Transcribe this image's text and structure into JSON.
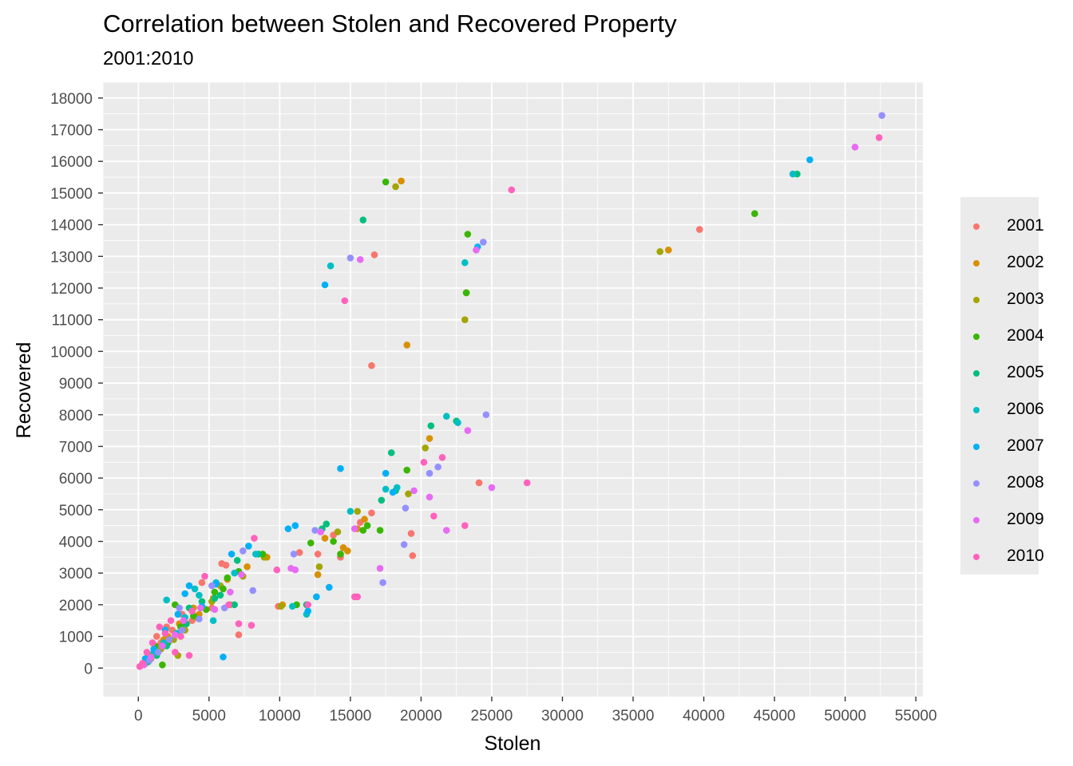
{
  "chart_data": {
    "type": "scatter",
    "title": "Correlation between Stolen and Recovered Property",
    "subtitle": "2001:2010",
    "xlabel": "Stolen",
    "ylabel": "Recovered",
    "xlim": [
      -2500,
      55500
    ],
    "ylim": [
      -900,
      18500
    ],
    "x_ticks": [
      "0",
      "5000",
      "10000",
      "15000",
      "20000",
      "25000",
      "30000",
      "35000",
      "40000",
      "45000",
      "50000",
      "55000"
    ],
    "y_ticks": [
      "0",
      "1000",
      "2000",
      "3000",
      "4000",
      "5000",
      "6000",
      "7000",
      "8000",
      "9000",
      "10000",
      "11000",
      "12000",
      "13000",
      "14000",
      "15000",
      "16000",
      "17000",
      "18000"
    ],
    "grid": true,
    "legend_position": "right",
    "colors": {
      "panel": "#ebebeb",
      "grid": "#ffffff",
      "axis_text": "#4d4d4d"
    },
    "series": [
      {
        "name": "2001",
        "color": "#F8766D",
        "points": [
          [
            39700,
            13850
          ],
          [
            16700,
            13050
          ],
          [
            16500,
            9550
          ],
          [
            24100,
            5850
          ],
          [
            19300,
            4250
          ],
          [
            19400,
            3550
          ],
          [
            15700,
            4600
          ],
          [
            16500,
            4900
          ],
          [
            13800,
            4200
          ],
          [
            14300,
            3500
          ],
          [
            12700,
            3600
          ],
          [
            14500,
            3800
          ],
          [
            7100,
            1050
          ],
          [
            5900,
            3300
          ],
          [
            4500,
            2700
          ],
          [
            5200,
            1900
          ],
          [
            3100,
            1700
          ],
          [
            2400,
            1200
          ],
          [
            1600,
            800
          ],
          [
            1000,
            400
          ],
          [
            600,
            200
          ],
          [
            300,
            100
          ],
          [
            1300,
            1000
          ],
          [
            2000,
            1300
          ],
          [
            3800,
            1500
          ],
          [
            6200,
            3250
          ],
          [
            9900,
            1950
          ],
          [
            11400,
            3650
          ]
        ]
      },
      {
        "name": "2002",
        "color": "#D89000",
        "points": [
          [
            18600,
            15380
          ],
          [
            19000,
            10200
          ],
          [
            37500,
            13200
          ],
          [
            20600,
            7250
          ],
          [
            15500,
            4400
          ],
          [
            14500,
            3800
          ],
          [
            12700,
            2950
          ],
          [
            13200,
            4100
          ],
          [
            16000,
            4700
          ],
          [
            7700,
            3200
          ],
          [
            10200,
            2000
          ],
          [
            9100,
            3500
          ],
          [
            4300,
            1700
          ],
          [
            3900,
            1900
          ],
          [
            2900,
            1400
          ],
          [
            2100,
            1000
          ],
          [
            5300,
            2200
          ],
          [
            6300,
            2800
          ],
          [
            1800,
            900
          ],
          [
            1200,
            600
          ],
          [
            700,
            300
          ],
          [
            14800,
            3700
          ]
        ]
      },
      {
        "name": "2003",
        "color": "#A3A500",
        "points": [
          [
            18200,
            15200
          ],
          [
            23100,
            11000
          ],
          [
            36900,
            13150
          ],
          [
            23200,
            11850
          ],
          [
            20300,
            6950
          ],
          [
            19100,
            5500
          ],
          [
            15500,
            4950
          ],
          [
            14100,
            4300
          ],
          [
            12800,
            3200
          ],
          [
            10100,
            1950
          ],
          [
            8900,
            3500
          ],
          [
            5800,
            2600
          ],
          [
            5200,
            2100
          ],
          [
            4100,
            1600
          ],
          [
            3300,
            1200
          ],
          [
            2500,
            900
          ],
          [
            1600,
            600
          ],
          [
            900,
            300
          ],
          [
            6500,
            2000
          ],
          [
            7400,
            2900
          ],
          [
            2800,
            400
          ]
        ]
      },
      {
        "name": "2004",
        "color": "#39B600",
        "points": [
          [
            43600,
            14350
          ],
          [
            17500,
            15350
          ],
          [
            23300,
            13700
          ],
          [
            23200,
            11850
          ],
          [
            19000,
            6250
          ],
          [
            17100,
            4350
          ],
          [
            16200,
            4500
          ],
          [
            15900,
            4350
          ],
          [
            13800,
            4000
          ],
          [
            14300,
            3600
          ],
          [
            12200,
            3950
          ],
          [
            11200,
            2000
          ],
          [
            8800,
            3600
          ],
          [
            7100,
            3050
          ],
          [
            6300,
            2850
          ],
          [
            4800,
            1850
          ],
          [
            3900,
            1650
          ],
          [
            3000,
            1300
          ],
          [
            2100,
            800
          ],
          [
            1700,
            100
          ],
          [
            900,
            400
          ],
          [
            500,
            150
          ],
          [
            5400,
            2400
          ],
          [
            1200,
            700
          ],
          [
            2600,
            2000
          ],
          [
            6000,
            2500
          ]
        ]
      },
      {
        "name": "2005",
        "color": "#00BF7D",
        "points": [
          [
            15900,
            14150
          ],
          [
            20700,
            7650
          ],
          [
            46600,
            15600
          ],
          [
            17900,
            6800
          ],
          [
            18200,
            5600
          ],
          [
            17200,
            5300
          ],
          [
            13300,
            4550
          ],
          [
            11900,
            2000
          ],
          [
            8500,
            3600
          ],
          [
            7000,
            3400
          ],
          [
            5400,
            2200
          ],
          [
            4500,
            2100
          ],
          [
            3600,
            1900
          ],
          [
            2800,
            1100
          ],
          [
            2000,
            700
          ],
          [
            1300,
            400
          ],
          [
            700,
            200
          ],
          [
            3400,
            1400
          ],
          [
            5800,
            2300
          ],
          [
            22500,
            7800
          ],
          [
            13000,
            4400
          ],
          [
            6800,
            2000
          ]
        ]
      },
      {
        "name": "2006",
        "color": "#00BFC4",
        "points": [
          [
            46300,
            15600
          ],
          [
            13600,
            12700
          ],
          [
            23100,
            12800
          ],
          [
            21800,
            7950
          ],
          [
            22600,
            7750
          ],
          [
            15000,
            4950
          ],
          [
            17500,
            5650
          ],
          [
            18300,
            5700
          ],
          [
            11900,
            1700
          ],
          [
            10900,
            1950
          ],
          [
            8300,
            3600
          ],
          [
            6800,
            3000
          ],
          [
            5500,
            2700
          ],
          [
            4300,
            2300
          ],
          [
            3300,
            1600
          ],
          [
            2700,
            1100
          ],
          [
            1800,
            800
          ],
          [
            1100,
            500
          ],
          [
            600,
            200
          ],
          [
            2000,
            2150
          ],
          [
            4000,
            2500
          ],
          [
            5300,
            1500
          ]
        ]
      },
      {
        "name": "2007",
        "color": "#00B0F6",
        "points": [
          [
            47500,
            16050
          ],
          [
            13200,
            12100
          ],
          [
            24000,
            13300
          ],
          [
            14300,
            6300
          ],
          [
            17500,
            6150
          ],
          [
            18000,
            5550
          ],
          [
            10600,
            4400
          ],
          [
            11100,
            4500
          ],
          [
            13500,
            2550
          ],
          [
            12600,
            2250
          ],
          [
            7800,
            3850
          ],
          [
            6600,
            3600
          ],
          [
            5500,
            2650
          ],
          [
            4500,
            1950
          ],
          [
            3600,
            2600
          ],
          [
            2800,
            1700
          ],
          [
            1900,
            1200
          ],
          [
            1100,
            600
          ],
          [
            6000,
            350
          ],
          [
            3300,
            2350
          ],
          [
            500,
            300
          ],
          [
            12000,
            1800
          ]
        ]
      },
      {
        "name": "2008",
        "color": "#9590FF",
        "points": [
          [
            52600,
            17450
          ],
          [
            24400,
            13450
          ],
          [
            15000,
            12950
          ],
          [
            24600,
            8000
          ],
          [
            20600,
            6150
          ],
          [
            21200,
            6350
          ],
          [
            18900,
            5050
          ],
          [
            17300,
            2700
          ],
          [
            18800,
            3900
          ],
          [
            12500,
            4350
          ],
          [
            11000,
            3600
          ],
          [
            8100,
            2450
          ],
          [
            7400,
            3700
          ],
          [
            5200,
            2600
          ],
          [
            4300,
            1550
          ],
          [
            3100,
            1200
          ],
          [
            2200,
            900
          ],
          [
            1400,
            500
          ],
          [
            800,
            250
          ],
          [
            2900,
            1900
          ],
          [
            6100,
            1900
          ]
        ]
      },
      {
        "name": "2009",
        "color": "#E76BF3",
        "points": [
          [
            50700,
            16450
          ],
          [
            23900,
            13200
          ],
          [
            15700,
            12900
          ],
          [
            23300,
            7500
          ],
          [
            20600,
            5400
          ],
          [
            19500,
            5600
          ],
          [
            17100,
            3150
          ],
          [
            15300,
            4400
          ],
          [
            12900,
            4300
          ],
          [
            11100,
            3100
          ],
          [
            10800,
            3150
          ],
          [
            7300,
            2950
          ],
          [
            6500,
            2400
          ],
          [
            5400,
            1850
          ],
          [
            4400,
            1900
          ],
          [
            3200,
            1500
          ],
          [
            2600,
            1050
          ],
          [
            1700,
            700
          ],
          [
            900,
            350
          ],
          [
            400,
            100
          ],
          [
            25000,
            5700
          ],
          [
            21800,
            4350
          ]
        ]
      },
      {
        "name": "2010",
        "color": "#FF62BC",
        "points": [
          [
            52400,
            16750
          ],
          [
            26400,
            15100
          ],
          [
            14600,
            11600
          ],
          [
            27500,
            5850
          ],
          [
            21500,
            6650
          ],
          [
            20900,
            4800
          ],
          [
            23100,
            4500
          ],
          [
            15300,
            2250
          ],
          [
            15500,
            2250
          ],
          [
            12000,
            2000
          ],
          [
            9800,
            3100
          ],
          [
            8000,
            1350
          ],
          [
            7100,
            1400
          ],
          [
            8200,
            4100
          ],
          [
            6400,
            2000
          ],
          [
            4700,
            2900
          ],
          [
            3800,
            1800
          ],
          [
            3000,
            1000
          ],
          [
            2300,
            1500
          ],
          [
            1500,
            1300
          ],
          [
            1900,
            1100
          ],
          [
            1000,
            800
          ],
          [
            600,
            500
          ],
          [
            300,
            150
          ],
          [
            100,
            50
          ],
          [
            2600,
            500
          ],
          [
            3600,
            400
          ],
          [
            20200,
            6500
          ]
        ]
      }
    ]
  }
}
